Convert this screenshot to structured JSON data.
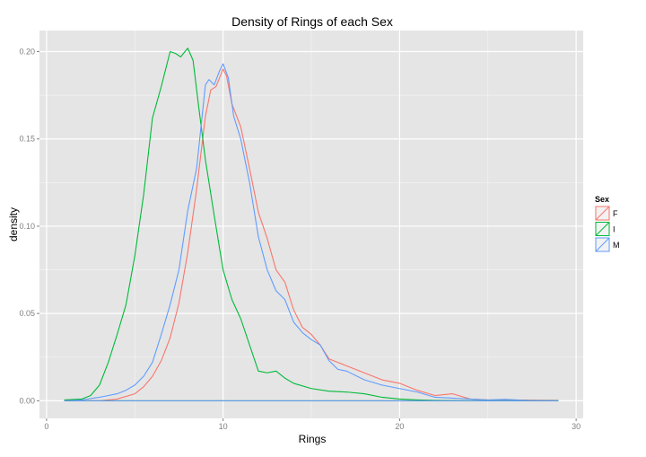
{
  "chart_data": {
    "type": "line",
    "title": "Density of Rings of each Sex",
    "xlabel": "Rings",
    "ylabel": "density",
    "xlim": [
      -0.4,
      30.4
    ],
    "ylim": [
      -0.0101,
      0.2121
    ],
    "x_ticks": [
      0,
      10,
      20,
      30
    ],
    "x_tick_labels": [
      "0",
      "10",
      "20",
      "30"
    ],
    "y_ticks": [
      0,
      0.05,
      0.1,
      0.15,
      0.2
    ],
    "y_tick_labels": [
      "0.00",
      "0.05",
      "0.10",
      "0.15",
      "0.20"
    ],
    "grid": true,
    "legend": {
      "title": "Sex",
      "placement": "right",
      "entries": [
        "F",
        "I",
        "M"
      ]
    },
    "colors": {
      "F": "#F8766D",
      "I": "#00BA38",
      "M": "#619CFF",
      "panel": "#E5E5E5",
      "grid": "#FFFFFF"
    },
    "series": [
      {
        "name": "F",
        "color": "#F8766D",
        "points": [
          [
            1,
            0.0
          ],
          [
            3,
            0.0
          ],
          [
            4,
            0.001
          ],
          [
            5,
            0.004
          ],
          [
            5.5,
            0.008
          ],
          [
            6,
            0.014
          ],
          [
            6.5,
            0.023
          ],
          [
            7,
            0.036
          ],
          [
            7.5,
            0.056
          ],
          [
            8,
            0.085
          ],
          [
            8.5,
            0.121
          ],
          [
            9,
            0.163
          ],
          [
            9.3,
            0.178
          ],
          [
            9.6,
            0.18
          ],
          [
            9.8,
            0.185
          ],
          [
            10,
            0.19
          ],
          [
            10.2,
            0.186
          ],
          [
            10.5,
            0.17
          ],
          [
            11,
            0.157
          ],
          [
            11.5,
            0.133
          ],
          [
            12,
            0.108
          ],
          [
            12.5,
            0.093
          ],
          [
            13,
            0.075
          ],
          [
            13.5,
            0.068
          ],
          [
            14,
            0.052
          ],
          [
            14.5,
            0.042
          ],
          [
            15,
            0.038
          ],
          [
            15.5,
            0.032
          ],
          [
            16,
            0.024
          ],
          [
            16.5,
            0.022
          ],
          [
            17,
            0.02
          ],
          [
            18,
            0.016
          ],
          [
            19,
            0.012
          ],
          [
            20,
            0.01
          ],
          [
            21,
            0.006
          ],
          [
            22,
            0.003
          ],
          [
            23,
            0.004
          ],
          [
            24,
            0.001
          ],
          [
            25,
            0.0005
          ],
          [
            26,
            0.0003
          ],
          [
            27,
            0.0004
          ],
          [
            28,
            0.0003
          ],
          [
            29,
            0.0002
          ]
        ]
      },
      {
        "name": "I",
        "color": "#00BA38",
        "points": [
          [
            1,
            0.0005
          ],
          [
            2,
            0.001
          ],
          [
            2.5,
            0.003
          ],
          [
            3,
            0.009
          ],
          [
            3.5,
            0.022
          ],
          [
            4,
            0.038
          ],
          [
            4.5,
            0.055
          ],
          [
            5,
            0.083
          ],
          [
            5.5,
            0.118
          ],
          [
            6,
            0.162
          ],
          [
            6.5,
            0.18
          ],
          [
            7,
            0.2
          ],
          [
            7.3,
            0.199
          ],
          [
            7.6,
            0.197
          ],
          [
            8,
            0.202
          ],
          [
            8.3,
            0.195
          ],
          [
            8.6,
            0.17
          ],
          [
            9,
            0.138
          ],
          [
            9.5,
            0.106
          ],
          [
            10,
            0.075
          ],
          [
            10.5,
            0.058
          ],
          [
            11,
            0.047
          ],
          [
            11.5,
            0.032
          ],
          [
            12,
            0.017
          ],
          [
            12.5,
            0.016
          ],
          [
            13,
            0.017
          ],
          [
            13.5,
            0.013
          ],
          [
            14,
            0.01
          ],
          [
            15,
            0.007
          ],
          [
            16,
            0.0055
          ],
          [
            17,
            0.005
          ],
          [
            18,
            0.004
          ],
          [
            19,
            0.002
          ],
          [
            20,
            0.001
          ],
          [
            21,
            0.0005
          ],
          [
            22,
            0.0002
          ],
          [
            23,
            0.0001
          ],
          [
            24,
            0.0
          ],
          [
            29,
            0.0
          ]
        ]
      },
      {
        "name": "M",
        "color": "#619CFF",
        "points": [
          [
            1,
            0.0
          ],
          [
            2,
            0.0005
          ],
          [
            3,
            0.002
          ],
          [
            4,
            0.004
          ],
          [
            4.5,
            0.006
          ],
          [
            5,
            0.009
          ],
          [
            5.5,
            0.014
          ],
          [
            6,
            0.022
          ],
          [
            6.5,
            0.038
          ],
          [
            7,
            0.055
          ],
          [
            7.5,
            0.075
          ],
          [
            8,
            0.109
          ],
          [
            8.5,
            0.133
          ],
          [
            9,
            0.181
          ],
          [
            9.2,
            0.184
          ],
          [
            9.5,
            0.181
          ],
          [
            9.8,
            0.189
          ],
          [
            10,
            0.193
          ],
          [
            10.3,
            0.185
          ],
          [
            10.6,
            0.163
          ],
          [
            11,
            0.15
          ],
          [
            11.5,
            0.125
          ],
          [
            12,
            0.094
          ],
          [
            12.5,
            0.075
          ],
          [
            13,
            0.063
          ],
          [
            13.5,
            0.058
          ],
          [
            14,
            0.045
          ],
          [
            14.5,
            0.039
          ],
          [
            15,
            0.035
          ],
          [
            15.5,
            0.032
          ],
          [
            16,
            0.023
          ],
          [
            16.5,
            0.018
          ],
          [
            17,
            0.017
          ],
          [
            18,
            0.012
          ],
          [
            19,
            0.009
          ],
          [
            20,
            0.007
          ],
          [
            21,
            0.005
          ],
          [
            22,
            0.002
          ],
          [
            23,
            0.0015
          ],
          [
            24,
            0.001
          ],
          [
            25,
            0.0005
          ],
          [
            26,
            0.0008
          ],
          [
            27,
            0.0003
          ],
          [
            28,
            0.0
          ],
          [
            29,
            0.0
          ]
        ]
      }
    ]
  }
}
